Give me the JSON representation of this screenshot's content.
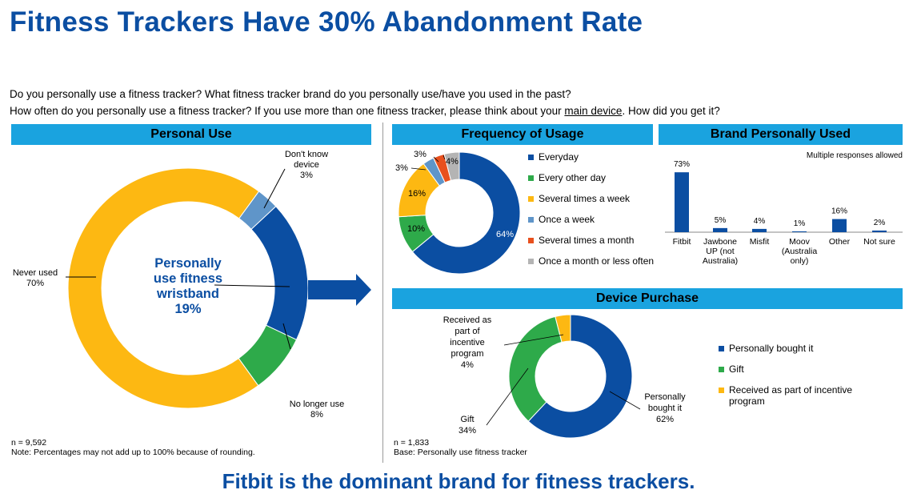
{
  "title": "Fitness Trackers Have 30% Abandonment Rate",
  "questions": {
    "line1": "Do you personally use a fitness tracker? What fitness tracker brand do you personally use/have you used in the past?",
    "line2_pre": "How often do you personally use a fitness tracker? If you use more than one fitness tracker, please think about your ",
    "line2_link": "main device",
    "line2_post": ". How did you get it?"
  },
  "tagline": "Fitbit is the dominant brand for fitness trackers.",
  "colors": {
    "blue": "#0b4ea2",
    "green": "#2eaa4a",
    "orange": "#fdb812",
    "lightblue": "#5f95c9",
    "red": "#e8501d",
    "gray": "#b4b4b4",
    "header": "#1aa3df",
    "bar": "#0b4ea2"
  },
  "personal_use": {
    "header": "Personal Use",
    "center_label": [
      "Personally",
      "use fitness",
      "wristband",
      "19%"
    ],
    "labels": {
      "dont_know": [
        "Don't know",
        "device",
        "3%"
      ],
      "never_used": [
        "Never used",
        "70%"
      ],
      "no_longer": [
        "No longer use",
        "8%"
      ]
    },
    "note_n": "n = 9,592",
    "note": "Note: Percentages may not add up to 100% because of rounding."
  },
  "frequency": {
    "header": "Frequency of Usage",
    "legend": [
      "Everyday",
      "Every other day",
      "Several times a week",
      "Once a week",
      "Several times a month",
      "Once a month or less often"
    ],
    "labels": [
      "64%",
      "10%",
      "16%",
      "3%",
      "3%",
      "4%"
    ]
  },
  "brand": {
    "header": "Brand Personally Used",
    "note": "Multiple responses allowed",
    "value_labels": [
      "73%",
      "5%",
      "4%",
      "1%",
      "16%",
      "2%"
    ],
    "category_lines": [
      [
        "Fitbit"
      ],
      [
        "Jawbone",
        "UP (not",
        "Australia)"
      ],
      [
        "Misfit"
      ],
      [
        "Moov",
        "(Australia",
        "only)"
      ],
      [
        "Other"
      ],
      [
        "Not sure"
      ]
    ]
  },
  "purchase": {
    "header": "Device Purchase",
    "legend": [
      "Personally bought it",
      "Gift",
      "Received as part of incentive",
      "program"
    ],
    "labels": {
      "incentive": [
        "Received as",
        "part of",
        "incentive",
        "program",
        "4%"
      ],
      "gift": [
        "Gift",
        "34%"
      ],
      "bought": [
        "Personally",
        "bought it",
        "62%"
      ]
    },
    "note_n": "n = 1,833",
    "note": "Base: Personally use fitness tracker"
  },
  "chart_data": [
    {
      "type": "pie",
      "title": "Personal Use",
      "categories": [
        "Personally use fitness wristband",
        "No longer use",
        "Never used",
        "Don't know device"
      ],
      "values": [
        19,
        8,
        70,
        3
      ]
    },
    {
      "type": "pie",
      "title": "Frequency of Usage",
      "categories": [
        "Everyday",
        "Every other day",
        "Several times a week",
        "Once a week",
        "Several times a month",
        "Once a month or less often"
      ],
      "values": [
        64,
        10,
        16,
        3,
        3,
        4
      ]
    },
    {
      "type": "bar",
      "title": "Brand Personally Used",
      "categories": [
        "Fitbit",
        "Jawbone UP (not Australia)",
        "Misfit",
        "Moov (Australia only)",
        "Other",
        "Not sure"
      ],
      "values": [
        73,
        5,
        4,
        1,
        16,
        2
      ],
      "ylim": [
        0,
        80
      ]
    },
    {
      "type": "pie",
      "title": "Device Purchase",
      "categories": [
        "Personally bought it",
        "Gift",
        "Received as part of incentive program"
      ],
      "values": [
        62,
        34,
        4
      ]
    }
  ]
}
